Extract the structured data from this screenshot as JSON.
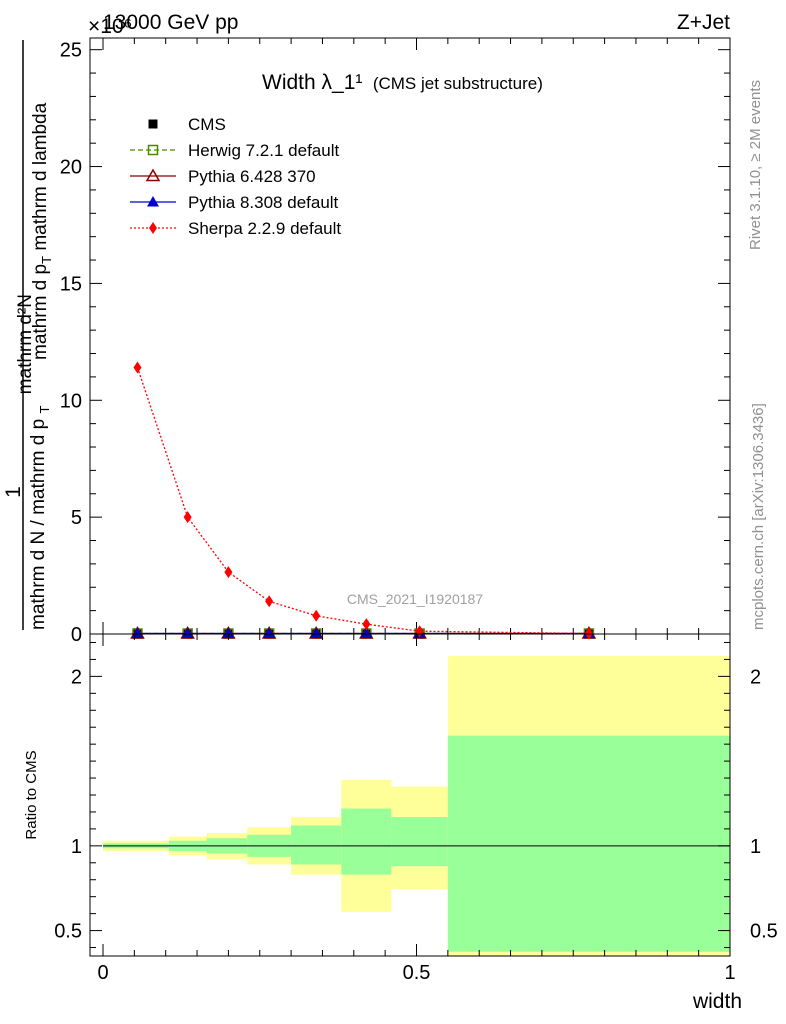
{
  "header": {
    "energy_label": "13000 GeV pp",
    "process_label": "Z+Jet",
    "exponent_label": "×10⁶"
  },
  "side_labels": {
    "rivet": "Rivet 3.1.10, ≥ 2M events",
    "mcplots": "mcplots.cern.ch [arXiv:1306.3436]"
  },
  "y_axis_title": {
    "numerator": "1",
    "denominator": "mathrm d N / mathrm d p",
    "denominator_sub": "T",
    "fraction_numerator": "mathrm d²N",
    "fraction_denominator": "mathrm d p",
    "fraction_denominator_sub": "T",
    "fraction_denominator_tail": " mathrm d lambda"
  },
  "chart_data": [
    {
      "type": "line",
      "title": "Width λ_1¹",
      "subtitle": "(CMS jet substructure)",
      "watermark": "CMS_2021_I1920187",
      "xlim": [
        0,
        1
      ],
      "ylim": [
        0,
        25.5
      ],
      "y_scale_note": "×10⁶",
      "y_ticks": [
        0,
        5,
        10,
        15,
        20,
        25
      ],
      "y_tick_labels": [
        "0",
        "5",
        "10",
        "15",
        "20",
        "25"
      ],
      "legend_position": "top-left",
      "series": [
        {
          "name": "CMS",
          "marker": "square",
          "color": "#000000",
          "x": [
            0.055,
            0.135,
            0.2,
            0.265,
            0.34,
            0.42,
            0.505,
            0.775
          ],
          "y": [
            0.02,
            0.02,
            0.02,
            0.02,
            0.02,
            0.02,
            0.02,
            0.02
          ]
        },
        {
          "name": "Herwig 7.2.1 default",
          "marker": "open-square",
          "line": "dashed",
          "color": "#4a8a00",
          "x": [
            0.055,
            0.135,
            0.2,
            0.265,
            0.34,
            0.42,
            0.505,
            0.775
          ],
          "y": [
            0.02,
            0.02,
            0.02,
            0.02,
            0.02,
            0.02,
            0.02,
            0.02
          ]
        },
        {
          "name": "Pythia 6.428 370",
          "marker": "open-triangle",
          "line": "solid",
          "color": "#8b0000",
          "x": [
            0.055,
            0.135,
            0.2,
            0.265,
            0.34,
            0.42,
            0.505,
            0.775
          ],
          "y": [
            0.02,
            0.02,
            0.02,
            0.02,
            0.02,
            0.02,
            0.02,
            0.02
          ]
        },
        {
          "name": "Pythia 8.308 default",
          "marker": "triangle",
          "line": "solid",
          "color": "#0000cc",
          "x": [
            0.055,
            0.135,
            0.2,
            0.265,
            0.34,
            0.42,
            0.505,
            0.775
          ],
          "y": [
            0.02,
            0.02,
            0.02,
            0.02,
            0.02,
            0.02,
            0.02,
            0.02
          ]
        },
        {
          "name": "Sherpa 2.2.9 default",
          "marker": "diamond",
          "line": "dotted",
          "color": "#ff0000",
          "x": [
            0.055,
            0.135,
            0.2,
            0.265,
            0.34,
            0.42,
            0.505,
            0.775
          ],
          "y": [
            11.4,
            5.0,
            2.65,
            1.4,
            0.78,
            0.42,
            0.12,
            0.02
          ]
        }
      ]
    },
    {
      "type": "area",
      "ylabel": "Ratio to CMS",
      "xlabel": "width",
      "xlim": [
        0,
        1
      ],
      "ylim": [
        0.35,
        2.25
      ],
      "x_ticks": [
        0,
        0.5,
        1
      ],
      "x_tick_labels": [
        "0",
        "0.5",
        "1"
      ],
      "y_ticks": [
        0.5,
        1,
        2
      ],
      "y_tick_labels": [
        "0.5",
        "1",
        "2"
      ],
      "reference_line": 1,
      "colors": {
        "inner_band": "#99ff99",
        "outer_band": "#ffff99"
      },
      "bins": [
        {
          "x0": 0.0,
          "x1": 0.105,
          "inner": [
            0.985,
            1.015
          ],
          "outer": [
            0.97,
            1.03
          ]
        },
        {
          "x0": 0.105,
          "x1": 0.165,
          "inner": [
            0.97,
            1.03
          ],
          "outer": [
            0.945,
            1.055
          ]
        },
        {
          "x0": 0.165,
          "x1": 0.23,
          "inner": [
            0.955,
            1.045
          ],
          "outer": [
            0.92,
            1.075
          ]
        },
        {
          "x0": 0.23,
          "x1": 0.3,
          "inner": [
            0.935,
            1.065
          ],
          "outer": [
            0.89,
            1.11
          ]
        },
        {
          "x0": 0.3,
          "x1": 0.38,
          "inner": [
            0.89,
            1.12
          ],
          "outer": [
            0.83,
            1.17
          ]
        },
        {
          "x0": 0.38,
          "x1": 0.46,
          "inner": [
            0.83,
            1.22
          ],
          "outer": [
            0.61,
            1.39
          ]
        },
        {
          "x0": 0.46,
          "x1": 0.55,
          "inner": [
            0.88,
            1.17
          ],
          "outer": [
            0.745,
            1.35
          ]
        },
        {
          "x0": 0.55,
          "x1": 1.0,
          "inner": [
            0.375,
            1.65
          ],
          "outer": [
            0.35,
            2.12
          ]
        }
      ]
    }
  ]
}
